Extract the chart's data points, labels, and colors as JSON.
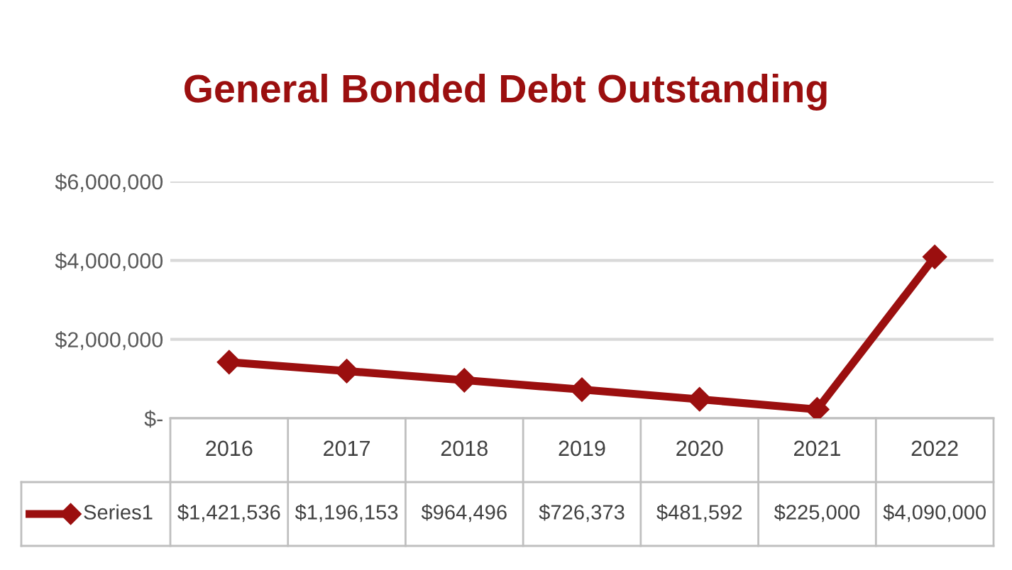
{
  "chart_data": {
    "type": "line",
    "title": "General Bonded Debt Outstanding",
    "categories": [
      "2016",
      "2017",
      "2018",
      "2019",
      "2020",
      "2021",
      "2022"
    ],
    "series": [
      {
        "name": "Series1",
        "color": "#9b0f0f",
        "values": [
          1421536,
          1196153,
          964496,
          726373,
          481592,
          225000,
          4090000
        ],
        "value_labels": [
          "$1,421,536",
          "$1,196,153",
          "$964,496",
          "$726,373",
          "$481,592",
          "$225,000",
          "$4,090,000"
        ]
      }
    ],
    "ylim": [
      0,
      6000000
    ],
    "yticks": [
      {
        "value": 0,
        "label": "$-"
      },
      {
        "value": 2000000,
        "label": "$2,000,000"
      },
      {
        "value": 4000000,
        "label": "$4,000,000"
      },
      {
        "value": 6000000,
        "label": "$6,000,000"
      }
    ],
    "grid": "y",
    "marker": "diamond",
    "line_style": "solid",
    "legend": "bottom"
  }
}
